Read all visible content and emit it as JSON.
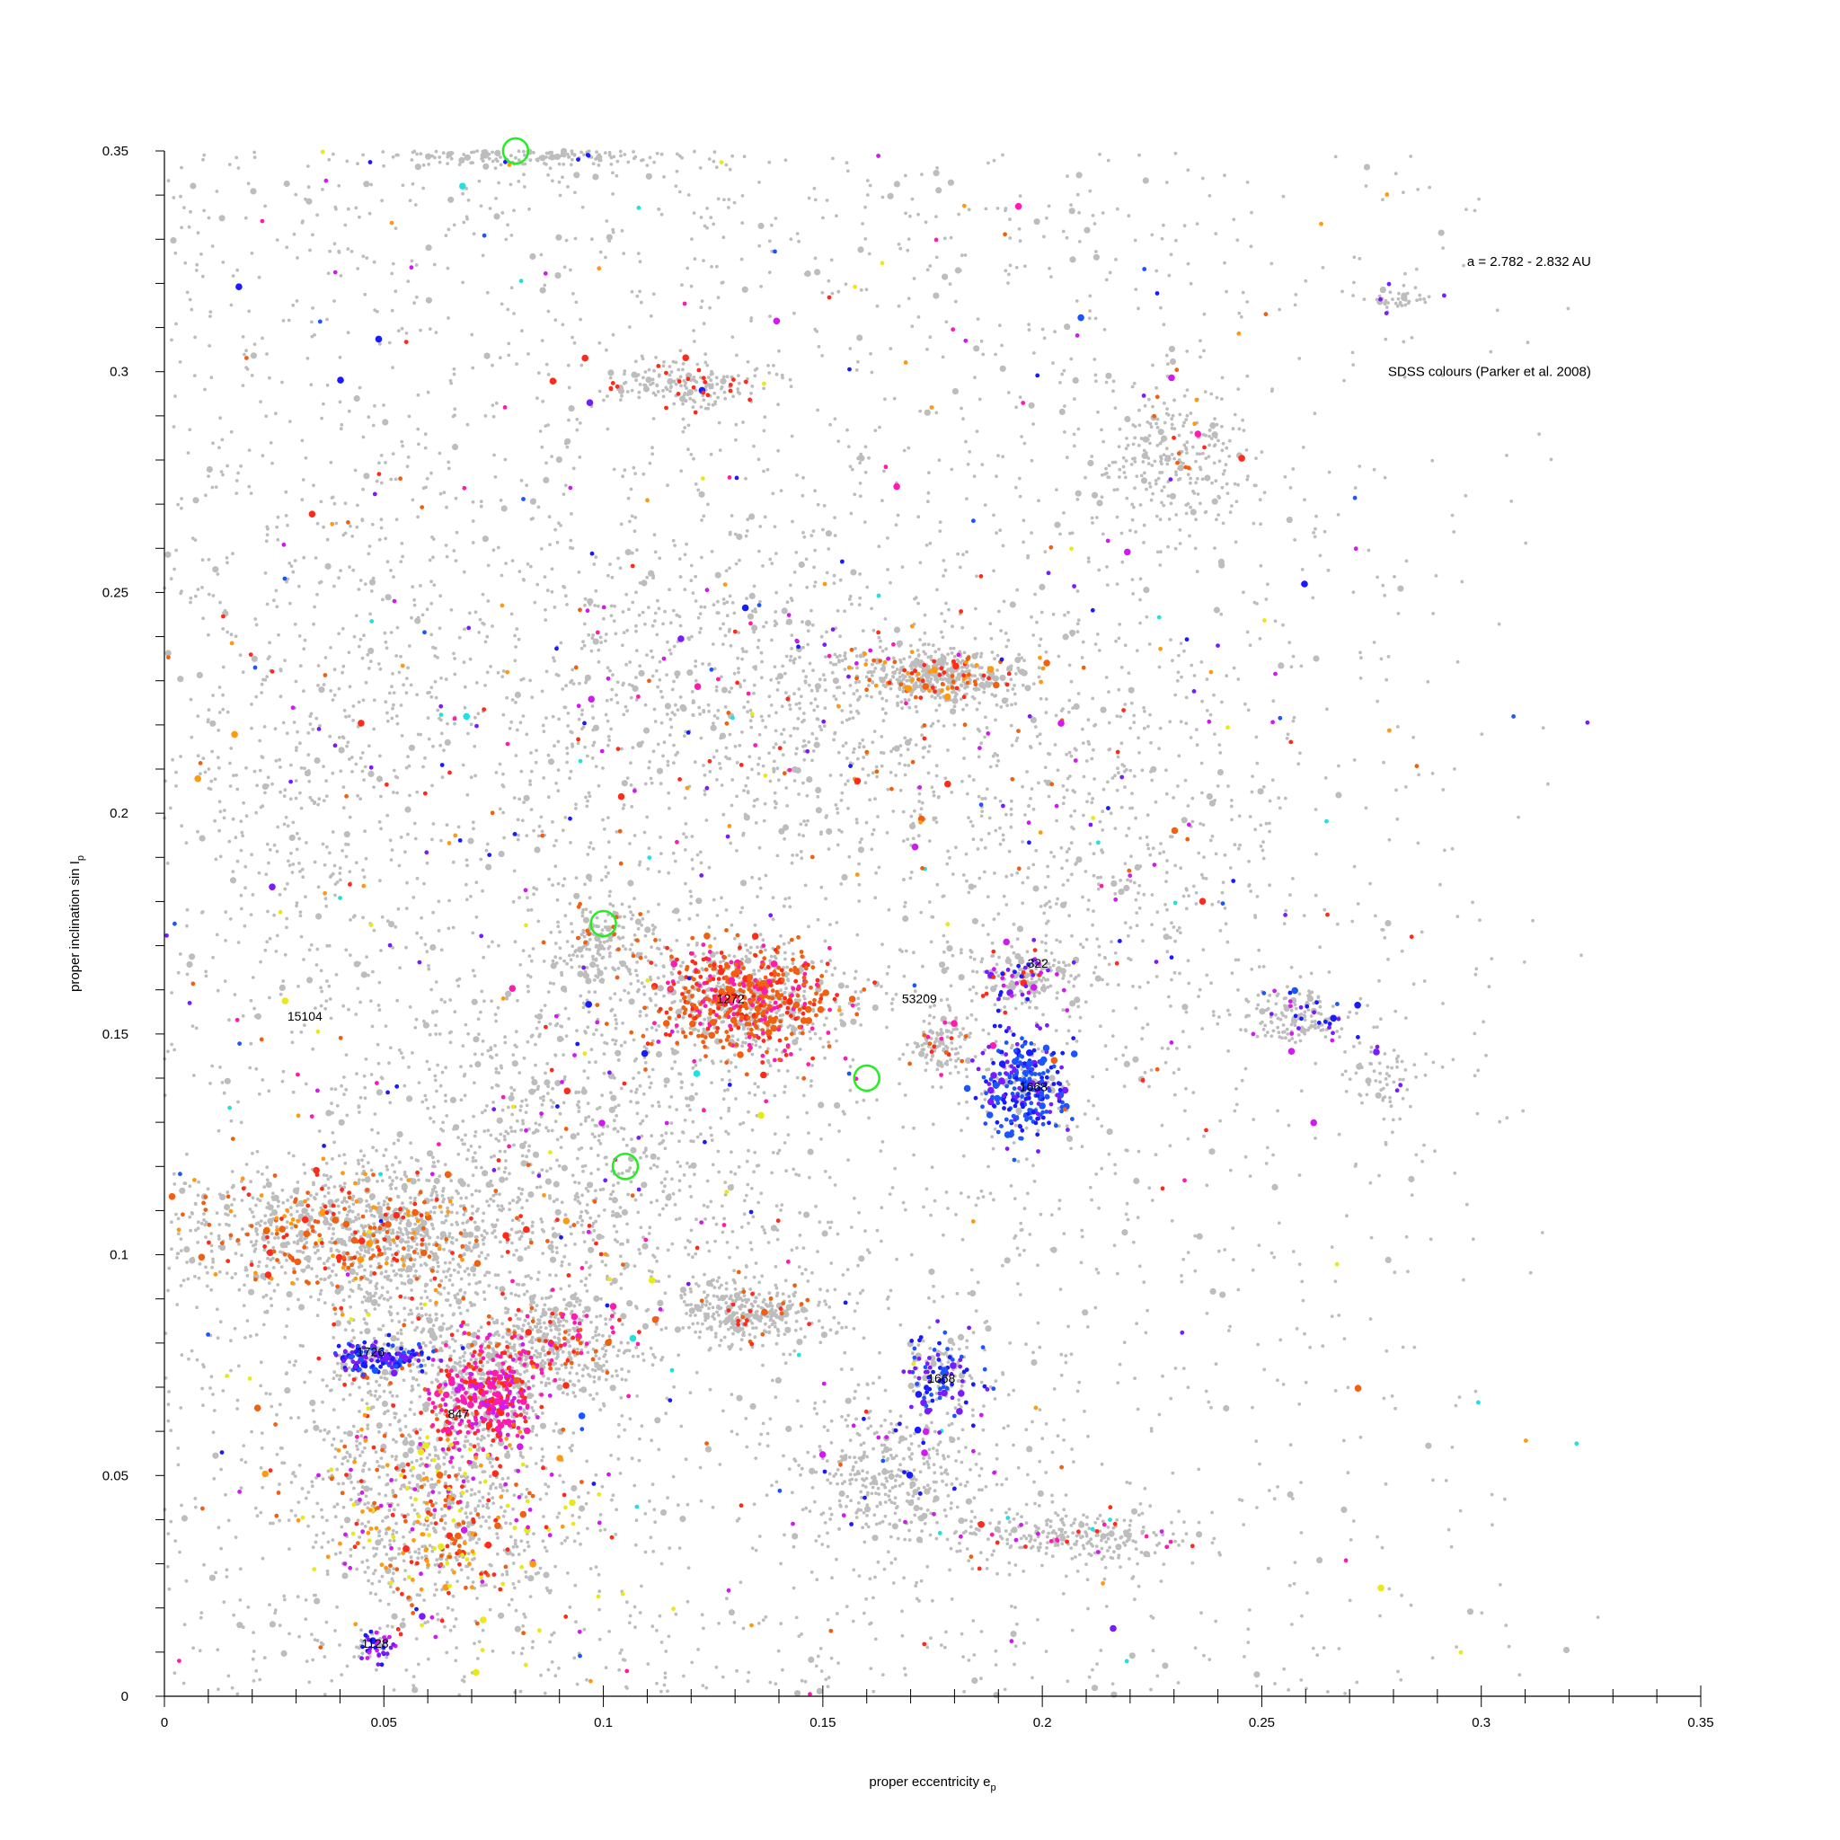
{
  "chart_data": {
    "type": "scatter",
    "xlabel": "proper eccentricity e",
    "xlabel_sub": "p",
    "ylabel": "proper inclination sin I",
    "ylabel_sub": "p",
    "xlim": [
      0,
      0.35
    ],
    "ylim": [
      0,
      0.35
    ],
    "x_ticks": [
      "0",
      "0.05",
      "0.1",
      "0.15",
      "0.2",
      "0.25",
      "0.3",
      "0.35"
    ],
    "y_ticks": [
      "0",
      "0.05",
      "0.1",
      "0.15",
      "0.2",
      "0.25",
      "0.3",
      "0.35"
    ],
    "x_minor_step": 0.01,
    "y_minor_step": 0.01,
    "grid": false,
    "annotations": [
      {
        "text": "a = 2.782 - 2.832 AU",
        "x": 0.325,
        "y": 0.324,
        "align": "end"
      },
      {
        "text": "SDSS colours (Parker et al. 2008)",
        "x": 0.325,
        "y": 0.299,
        "align": "end"
      }
    ],
    "family_labels": [
      {
        "text": "15104",
        "x": 0.032,
        "y": 0.153
      },
      {
        "text": "1272",
        "x": 0.129,
        "y": 0.157
      },
      {
        "text": "53209",
        "x": 0.172,
        "y": 0.157
      },
      {
        "text": "322",
        "x": 0.199,
        "y": 0.165
      },
      {
        "text": "1668",
        "x": 0.198,
        "y": 0.137
      },
      {
        "text": "1726",
        "x": 0.047,
        "y": 0.077
      },
      {
        "text": "847",
        "x": 0.067,
        "y": 0.063
      },
      {
        "text": "1668",
        "x": 0.177,
        "y": 0.071
      },
      {
        "text": "1128",
        "x": 0.048,
        "y": 0.011
      }
    ],
    "highlight_circles": [
      {
        "x": 0.08,
        "y": 0.35
      },
      {
        "x": 0.1,
        "y": 0.175
      },
      {
        "x": 0.16,
        "y": 0.14
      },
      {
        "x": 0.105,
        "y": 0.12
      }
    ],
    "colors": {
      "background_points": "#bdbdbd",
      "highlight_circle": "#22ee22",
      "palette": [
        "#ff2a1a",
        "#f06010",
        "#ff9a10",
        "#1a1aff",
        "#1a55ff",
        "#7a1aff",
        "#d01af0",
        "#ff1ab0",
        "#e8e81a",
        "#20e0e0"
      ]
    },
    "clusters": [
      {
        "x": 0.132,
        "y": 0.158,
        "sx": 0.01,
        "sy": 0.006,
        "n": 900,
        "colored": 0.5,
        "palette": [
          0,
          1,
          1,
          7
        ]
      },
      {
        "x": 0.043,
        "y": 0.105,
        "sx": 0.022,
        "sy": 0.007,
        "n": 950,
        "colored": 0.22,
        "palette": [
          0,
          1,
          1,
          2
        ]
      },
      {
        "x": 0.053,
        "y": 0.082,
        "sx": 0.012,
        "sy": 0.018,
        "n": 500,
        "colored": 0.1,
        "palette": [
          0,
          1
        ]
      },
      {
        "x": 0.073,
        "y": 0.068,
        "sx": 0.006,
        "sy": 0.006,
        "n": 500,
        "colored": 0.55,
        "palette": [
          0,
          7,
          7,
          6
        ]
      },
      {
        "x": 0.087,
        "y": 0.08,
        "sx": 0.01,
        "sy": 0.006,
        "n": 500,
        "colored": 0.2,
        "palette": [
          0,
          1,
          7
        ]
      },
      {
        "x": 0.063,
        "y": 0.042,
        "sx": 0.016,
        "sy": 0.012,
        "n": 800,
        "colored": 0.32,
        "palette": [
          0,
          1,
          2,
          6,
          8
        ]
      },
      {
        "x": 0.049,
        "y": 0.077,
        "sx": 0.005,
        "sy": 0.0018,
        "n": 160,
        "colored": 0.75,
        "palette": [
          3,
          4,
          5
        ]
      },
      {
        "x": 0.196,
        "y": 0.138,
        "sx": 0.0045,
        "sy": 0.0055,
        "n": 340,
        "colored": 0.82,
        "palette": [
          3,
          4,
          4,
          5
        ]
      },
      {
        "x": 0.177,
        "y": 0.073,
        "sx": 0.004,
        "sy": 0.005,
        "n": 170,
        "colored": 0.5,
        "palette": [
          3,
          4,
          5
        ]
      },
      {
        "x": 0.048,
        "y": 0.011,
        "sx": 0.0025,
        "sy": 0.0018,
        "n": 60,
        "colored": 0.55,
        "palette": [
          3,
          5,
          6
        ]
      },
      {
        "x": 0.176,
        "y": 0.231,
        "sx": 0.01,
        "sy": 0.003,
        "n": 450,
        "colored": 0.14,
        "palette": [
          0,
          1,
          2
        ]
      },
      {
        "x": 0.133,
        "y": 0.087,
        "sx": 0.007,
        "sy": 0.0035,
        "n": 320,
        "colored": 0.05,
        "palette": [
          0,
          1
        ]
      },
      {
        "x": 0.195,
        "y": 0.163,
        "sx": 0.005,
        "sy": 0.003,
        "n": 180,
        "colored": 0.3,
        "palette": [
          0,
          3,
          5,
          6
        ]
      },
      {
        "x": 0.177,
        "y": 0.148,
        "sx": 0.0035,
        "sy": 0.003,
        "n": 120,
        "colored": 0.1,
        "palette": [
          0,
          1,
          7
        ]
      },
      {
        "x": 0.258,
        "y": 0.154,
        "sx": 0.006,
        "sy": 0.003,
        "n": 160,
        "colored": 0.22,
        "palette": [
          3,
          4,
          5,
          6
        ]
      },
      {
        "x": 0.12,
        "y": 0.297,
        "sx": 0.009,
        "sy": 0.0025,
        "n": 170,
        "colored": 0.12,
        "palette": [
          0
        ]
      },
      {
        "x": 0.085,
        "y": 0.349,
        "sx": 0.022,
        "sy": 0.0012,
        "n": 180,
        "colored": 0.02,
        "palette": [
          3
        ]
      },
      {
        "x": 0.23,
        "y": 0.28,
        "sx": 0.009,
        "sy": 0.009,
        "n": 260,
        "colored": 0.04,
        "palette": [
          0,
          1
        ]
      },
      {
        "x": 0.165,
        "y": 0.05,
        "sx": 0.01,
        "sy": 0.008,
        "n": 320,
        "colored": 0.06,
        "palette": [
          3,
          6
        ]
      },
      {
        "x": 0.205,
        "y": 0.036,
        "sx": 0.013,
        "sy": 0.003,
        "n": 260,
        "colored": 0.12,
        "palette": [
          6,
          7,
          0
        ]
      },
      {
        "x": 0.278,
        "y": 0.14,
        "sx": 0.004,
        "sy": 0.004,
        "n": 60,
        "colored": 0.06,
        "palette": [
          5
        ]
      },
      {
        "x": 0.281,
        "y": 0.316,
        "sx": 0.005,
        "sy": 0.0015,
        "n": 40,
        "colored": 0.05,
        "palette": [
          5
        ]
      },
      {
        "x": 0.1,
        "y": 0.17,
        "sx": 0.006,
        "sy": 0.006,
        "n": 200,
        "colored": 0.05,
        "palette": [
          1
        ]
      },
      {
        "x": 0.095,
        "y": 0.125,
        "sx": 0.025,
        "sy": 0.02,
        "n": 800,
        "colored": 0.07,
        "palette": [
          0,
          1,
          3,
          5,
          6,
          7,
          8
        ]
      },
      {
        "x": 0.13,
        "y": 0.225,
        "sx": 0.035,
        "sy": 0.02,
        "n": 900,
        "colored": 0.09,
        "palette": [
          0,
          1,
          2,
          3,
          5,
          6,
          7
        ]
      },
      {
        "x": 0.035,
        "y": 0.21,
        "sx": 0.015,
        "sy": 0.03,
        "n": 300,
        "colored": 0.05,
        "palette": [
          0,
          1,
          5,
          6
        ]
      },
      {
        "x": 0.215,
        "y": 0.19,
        "sx": 0.025,
        "sy": 0.03,
        "n": 500,
        "colored": 0.08,
        "palette": [
          0,
          1,
          3,
          5,
          6
        ]
      }
    ],
    "background": {
      "n": 4200,
      "x_range": [
        0.0,
        0.33
      ],
      "y_range": [
        0.0,
        0.35
      ],
      "colored": 0.06
    }
  }
}
